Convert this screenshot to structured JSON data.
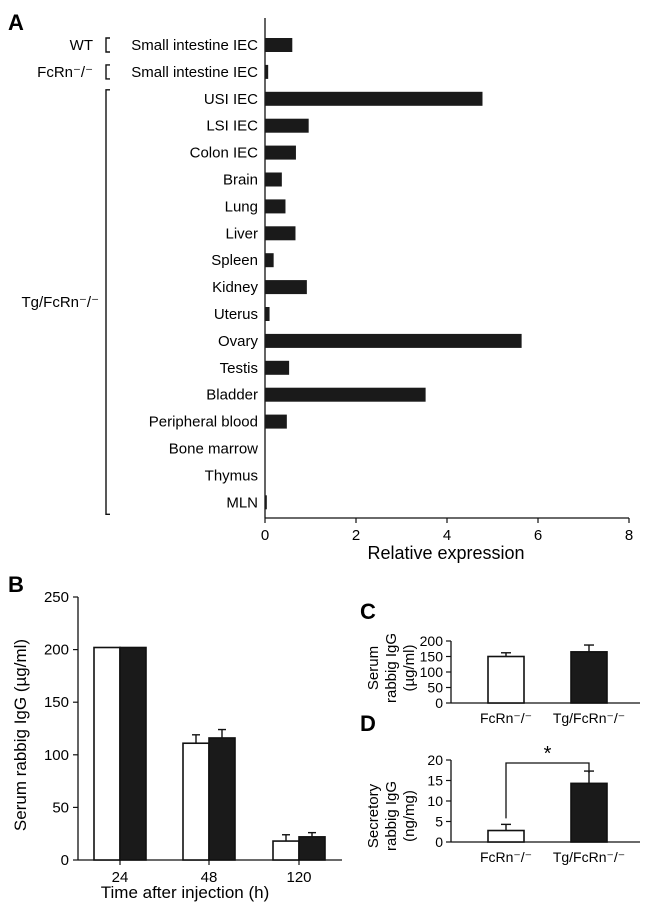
{
  "panels": {
    "A": {
      "letter": "A",
      "chart_data": {
        "type": "bar",
        "orientation": "horizontal",
        "xlabel": "Relative expression",
        "xlim": [
          0,
          8
        ],
        "xticks": [
          "0",
          "2",
          "4",
          "6",
          "8"
        ],
        "groups": [
          {
            "label": "WT",
            "members": [
              "Small intestine IEC"
            ]
          },
          {
            "label": "FcRn⁻/⁻",
            "members": [
              "Small intestine IEC"
            ]
          },
          {
            "label": "Tg/FcRn⁻/⁻",
            "members": [
              "USI IEC",
              "LSI IEC",
              "Colon IEC",
              "Brain",
              "Lung",
              "Liver",
              "Spleen",
              "Kidney",
              "Uterus",
              "Ovary",
              "Testis",
              "Bladder",
              "Peripheral blood",
              "Bone marrow",
              "Thymus",
              "MLN"
            ]
          }
        ],
        "categories": [
          "Small intestine IEC",
          "Small intestine IEC",
          "USI IEC",
          "LSI IEC",
          "Colon IEC",
          "Brain",
          "Lung",
          "Liver",
          "Spleen",
          "Kidney",
          "Uterus",
          "Ovary",
          "Testis",
          "Bladder",
          "Peripheral blood",
          "Bone marrow",
          "Thymus",
          "MLN"
        ],
        "values": [
          0.6,
          0.07,
          4.78,
          0.96,
          0.68,
          0.37,
          0.45,
          0.67,
          0.19,
          0.92,
          0.1,
          5.64,
          0.53,
          3.53,
          0.48,
          0,
          0,
          0.04
        ],
        "bar_color": "#1a1a1a"
      }
    },
    "B": {
      "letter": "B",
      "chart_data": {
        "type": "bar",
        "categories": [
          "24",
          "48",
          "120"
        ],
        "series": [
          {
            "values": [
              202,
              111,
              18
            ],
            "errors": [
              0,
              8,
              6
            ],
            "color": "#ffffff"
          },
          {
            "values": [
              202,
              116,
              22
            ],
            "errors": [
              0,
              8,
              4
            ],
            "color": "#1a1a1a"
          }
        ],
        "xlabel": "Time after injection (h)",
        "ylabel": "Serum rabbig IgG (µg/ml)",
        "ylim": [
          0,
          250
        ],
        "yticks": [
          "0",
          "50",
          "100",
          "150",
          "200",
          "250"
        ]
      }
    },
    "C": {
      "letter": "C",
      "chart_data": {
        "type": "bar",
        "categories": [
          "FcRn⁻/⁻",
          "Tg/FcRn⁻/⁻"
        ],
        "values": [
          150,
          165
        ],
        "errors": [
          12,
          22
        ],
        "colors": [
          "#ffffff",
          "#1a1a1a"
        ],
        "ylabel_lines": [
          "Serum",
          "rabbig IgG",
          "(µg/ml)"
        ],
        "ylim": [
          0,
          200
        ],
        "yticks": [
          "0",
          "50",
          "100",
          "150",
          "200"
        ]
      }
    },
    "D": {
      "letter": "D",
      "chart_data": {
        "type": "bar",
        "categories": [
          "FcRn⁻/⁻",
          "Tg/FcRn⁻/⁻"
        ],
        "values": [
          2.8,
          14.3
        ],
        "errors": [
          1.5,
          3.0
        ],
        "colors": [
          "#ffffff",
          "#1a1a1a"
        ],
        "ylabel_lines": [
          "Secretory",
          "rabbig IgG",
          "(ng/mg)"
        ],
        "ylim": [
          0,
          20
        ],
        "yticks": [
          "0",
          "5",
          "10",
          "15",
          "20"
        ],
        "significance": "*"
      }
    }
  }
}
